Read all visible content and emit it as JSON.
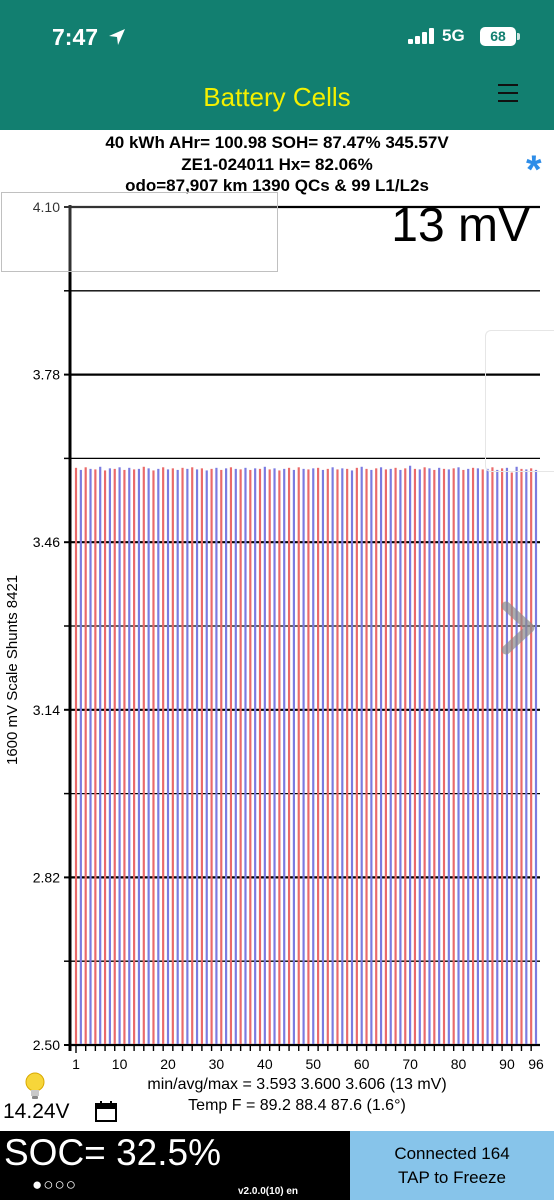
{
  "status_bar": {
    "time": "7:47",
    "network": "5G",
    "battery": "68"
  },
  "app_bar": {
    "title": "Battery Cells"
  },
  "info": {
    "line1": "40 kWh  AHr= 100.98  SOH= 87.47%   345.57V",
    "line2": "ZE1-024011   Hx= 82.06%",
    "line3": "odo=87,907 km 1390 QCs & 99 L1/L2s"
  },
  "spread_label": "13 mV",
  "stats": {
    "line1": "min/avg/max = 3.593 3.600 3.606  (13 mV)",
    "line2": "Temp F = 89.2  88.4  87.6  (1.6°)"
  },
  "voltage_12v": "14.24V",
  "soc": "SOC= 32.5%",
  "pager_dots": "●○○○",
  "version": "v2.0.0(10) en",
  "connection": {
    "line1": "Connected 164",
    "line2": "TAP to Freeze"
  },
  "colors": {
    "bar_odd": "#ea6a6a",
    "bar_even": "#7b7be0",
    "app_bar": "#127f70",
    "title": "#f4f000",
    "star": "#2e8de8",
    "connect_bg": "#87c4ea"
  },
  "icons": [
    "location-arrow-icon",
    "signal-bars-icon",
    "star-icon",
    "menu-icon",
    "next-arrow-icon",
    "bulb-icon",
    "calendar-icon"
  ],
  "chart_data": {
    "type": "bar",
    "ylabel": "1600 mV Scale   Shunts 8421",
    "ylim": [
      2.5,
      4.1
    ],
    "y_ticks": [
      "4.10",
      "3.78",
      "3.46",
      "3.14",
      "2.82",
      "2.50"
    ],
    "x_ticks": [
      "1",
      "10",
      "20",
      "30",
      "40",
      "50",
      "60",
      "70",
      "80",
      "90",
      "96"
    ],
    "cell_count": 96,
    "values": [
      3.602,
      3.598,
      3.603,
      3.6,
      3.599,
      3.604,
      3.597,
      3.601,
      3.6,
      3.603,
      3.598,
      3.602,
      3.599,
      3.6,
      3.604,
      3.601,
      3.597,
      3.6,
      3.603,
      3.599,
      3.601,
      3.598,
      3.602,
      3.6,
      3.603,
      3.599,
      3.601,
      3.597,
      3.6,
      3.602,
      3.598,
      3.601,
      3.603,
      3.6,
      3.599,
      3.602,
      3.598,
      3.601,
      3.6,
      3.604,
      3.599,
      3.601,
      3.597,
      3.6,
      3.602,
      3.598,
      3.603,
      3.6,
      3.599,
      3.601,
      3.602,
      3.598,
      3.6,
      3.603,
      3.599,
      3.601,
      3.6,
      3.597,
      3.602,
      3.604,
      3.6,
      3.598,
      3.601,
      3.603,
      3.599,
      3.6,
      3.602,
      3.598,
      3.601,
      3.606,
      3.6,
      3.599,
      3.603,
      3.601,
      3.598,
      3.602,
      3.6,
      3.599,
      3.601,
      3.603,
      3.598,
      3.6,
      3.602,
      3.601,
      3.599,
      3.6,
      3.603,
      3.598,
      3.601,
      3.602,
      3.593,
      3.604,
      3.6,
      3.599,
      3.601,
      3.598
    ]
  }
}
